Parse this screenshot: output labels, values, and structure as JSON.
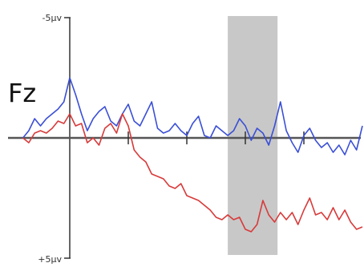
{
  "chart_data": {
    "type": "line",
    "channel": "Fz",
    "y_axis": {
      "top_label": "-5μv",
      "bottom_label": "+5μv",
      "top_value": -5,
      "bottom_value": 5,
      "inverted": true
    },
    "grid": false,
    "legend": "none",
    "highlight_window": {
      "x_start": 0.54,
      "x_end": 0.71,
      "color": "#c8c8c8"
    },
    "series": [
      {
        "color": "#3a4fd6",
        "points": [
          [
            -0.16,
            0.0
          ],
          [
            -0.14,
            -0.3
          ],
          [
            -0.12,
            -0.8
          ],
          [
            -0.1,
            -0.5
          ],
          [
            -0.08,
            -0.8
          ],
          [
            -0.06,
            -1.0
          ],
          [
            -0.04,
            -1.2
          ],
          [
            -0.02,
            -1.5
          ],
          [
            0.0,
            -2.5
          ],
          [
            0.02,
            -1.8
          ],
          [
            0.04,
            -1.0
          ],
          [
            0.06,
            -0.3
          ],
          [
            0.08,
            -0.8
          ],
          [
            0.1,
            -1.1
          ],
          [
            0.12,
            -1.3
          ],
          [
            0.14,
            -0.7
          ],
          [
            0.16,
            -0.5
          ],
          [
            0.18,
            -1.0
          ],
          [
            0.2,
            -1.4
          ],
          [
            0.22,
            -0.7
          ],
          [
            0.24,
            -0.5
          ],
          [
            0.26,
            -1.0
          ],
          [
            0.28,
            -1.5
          ],
          [
            0.3,
            -0.4
          ],
          [
            0.32,
            -0.2
          ],
          [
            0.34,
            -0.3
          ],
          [
            0.36,
            -0.6
          ],
          [
            0.38,
            -0.3
          ],
          [
            0.4,
            -0.1
          ],
          [
            0.42,
            -0.6
          ],
          [
            0.44,
            -0.9
          ],
          [
            0.46,
            -0.1
          ],
          [
            0.48,
            0.0
          ],
          [
            0.5,
            -0.5
          ],
          [
            0.52,
            -0.3
          ],
          [
            0.54,
            -0.1
          ],
          [
            0.56,
            -0.3
          ],
          [
            0.58,
            -0.8
          ],
          [
            0.6,
            -0.5
          ],
          [
            0.62,
            0.1
          ],
          [
            0.64,
            -0.4
          ],
          [
            0.66,
            -0.2
          ],
          [
            0.68,
            0.3
          ],
          [
            0.7,
            -0.5
          ],
          [
            0.72,
            -1.5
          ],
          [
            0.74,
            -0.3
          ],
          [
            0.76,
            0.2
          ],
          [
            0.78,
            0.6
          ],
          [
            0.8,
            -0.1
          ],
          [
            0.82,
            -0.4
          ],
          [
            0.84,
            0.1
          ],
          [
            0.86,
            0.4
          ],
          [
            0.88,
            0.2
          ],
          [
            0.9,
            0.6
          ],
          [
            0.92,
            0.3
          ],
          [
            0.94,
            0.7
          ],
          [
            0.96,
            0.1
          ],
          [
            0.98,
            0.5
          ],
          [
            1.0,
            -0.5
          ]
        ]
      },
      {
        "color": "#d83a3a",
        "points": [
          [
            -0.16,
            0.0
          ],
          [
            -0.14,
            0.2
          ],
          [
            -0.12,
            -0.2
          ],
          [
            -0.1,
            -0.3
          ],
          [
            -0.08,
            -0.2
          ],
          [
            -0.06,
            -0.4
          ],
          [
            -0.04,
            -0.7
          ],
          [
            -0.02,
            -0.6
          ],
          [
            0.0,
            -1.0
          ],
          [
            0.02,
            -0.5
          ],
          [
            0.04,
            -0.6
          ],
          [
            0.06,
            0.2
          ],
          [
            0.08,
            0.0
          ],
          [
            0.1,
            0.3
          ],
          [
            0.12,
            -0.4
          ],
          [
            0.14,
            -0.6
          ],
          [
            0.16,
            -0.2
          ],
          [
            0.18,
            -1.0
          ],
          [
            0.2,
            -0.5
          ],
          [
            0.22,
            0.5
          ],
          [
            0.24,
            0.8
          ],
          [
            0.26,
            1.0
          ],
          [
            0.28,
            1.5
          ],
          [
            0.3,
            1.6
          ],
          [
            0.32,
            1.7
          ],
          [
            0.34,
            2.0
          ],
          [
            0.36,
            2.1
          ],
          [
            0.38,
            1.9
          ],
          [
            0.4,
            2.4
          ],
          [
            0.42,
            2.5
          ],
          [
            0.44,
            2.6
          ],
          [
            0.46,
            2.8
          ],
          [
            0.48,
            3.0
          ],
          [
            0.5,
            3.3
          ],
          [
            0.52,
            3.4
          ],
          [
            0.54,
            3.2
          ],
          [
            0.56,
            3.4
          ],
          [
            0.58,
            3.3
          ],
          [
            0.6,
            3.8
          ],
          [
            0.62,
            3.9
          ],
          [
            0.64,
            3.6
          ],
          [
            0.66,
            2.6
          ],
          [
            0.68,
            3.2
          ],
          [
            0.7,
            3.5
          ],
          [
            0.72,
            3.1
          ],
          [
            0.74,
            3.4
          ],
          [
            0.76,
            3.1
          ],
          [
            0.78,
            3.6
          ],
          [
            0.8,
            3.0
          ],
          [
            0.82,
            2.5
          ],
          [
            0.84,
            3.2
          ],
          [
            0.86,
            3.1
          ],
          [
            0.88,
            3.4
          ],
          [
            0.9,
            2.9
          ],
          [
            0.92,
            3.4
          ],
          [
            0.94,
            3.0
          ],
          [
            0.96,
            3.5
          ],
          [
            0.98,
            3.8
          ],
          [
            1.0,
            3.7
          ]
        ]
      }
    ]
  }
}
